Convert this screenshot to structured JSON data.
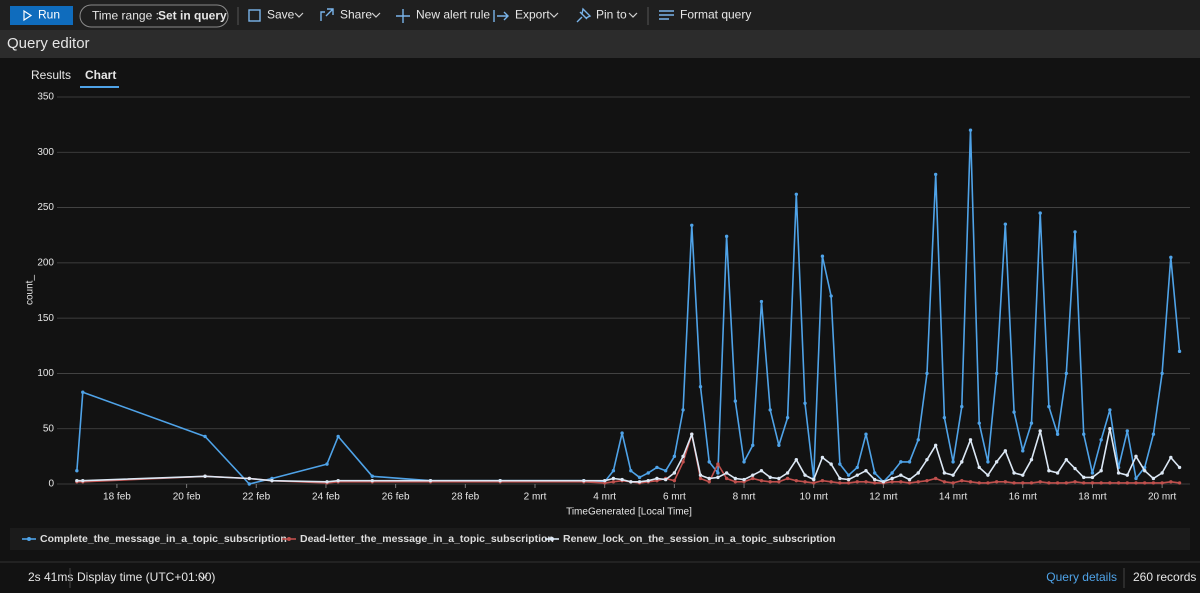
{
  "toolbar": {
    "run": "Run",
    "time_range_label": "Time range : ",
    "time_range_value": "Set in query",
    "save": "Save",
    "share": "Share",
    "new_alert_rule": "New alert rule",
    "export": "Export",
    "pin_to": "Pin to",
    "format_query": "Format query"
  },
  "header": {
    "title": "Query editor"
  },
  "tabs": [
    "Results",
    "Chart"
  ],
  "footer": {
    "duration": "2s 41ms",
    "display_time": "Display time (UTC+01:00)",
    "query_details": "Query details",
    "records": "260 records"
  },
  "chart_data": {
    "type": "line",
    "xlabel": "TimeGenerated [Local Time]",
    "ylabel": "count_",
    "x": [
      16.85,
      17.02,
      20.53,
      21.8,
      22.45,
      24.03,
      24.35,
      25.33,
      27,
      29,
      31.4,
      32,
      32.25,
      32.5,
      32.75,
      33,
      33.25,
      33.5,
      33.75,
      34,
      34.25,
      34.5,
      34.75,
      35,
      35.25,
      35.5,
      35.75,
      36,
      36.25,
      36.5,
      36.75,
      37,
      37.25,
      37.5,
      37.75,
      38,
      38.25,
      38.5,
      38.75,
      39,
      39.25,
      39.5,
      39.75,
      40,
      40.25,
      40.5,
      40.75,
      41,
      41.25,
      41.5,
      41.75,
      42,
      42.25,
      42.5,
      42.75,
      43,
      43.25,
      43.5,
      43.75,
      44,
      44.25,
      44.5,
      44.75,
      45,
      45.25,
      45.5,
      45.75,
      46,
      46.25,
      46.5,
      46.75,
      47,
      47.25,
      47.5,
      47.75,
      48,
      48.25,
      48.5
    ],
    "series": [
      {
        "name": "Complete_the_message_in_a_topic_subscription",
        "color": "#4fa3e8",
        "values": [
          12,
          83,
          43,
          0,
          5,
          18,
          43,
          7,
          3,
          3,
          3,
          2,
          12,
          46,
          12,
          6,
          10,
          15,
          12,
          25,
          67,
          234,
          88,
          20,
          10,
          224,
          75,
          20,
          35,
          165,
          67,
          35,
          60,
          262,
          73,
          5,
          206,
          170,
          18,
          8,
          15,
          45,
          10,
          2,
          10,
          20,
          20,
          40,
          100,
          280,
          60,
          20,
          70,
          320,
          55,
          20,
          100,
          235,
          65,
          30,
          55,
          245,
          70,
          45,
          100,
          228,
          45,
          10,
          40,
          67,
          15,
          48,
          5,
          15,
          45,
          100,
          205,
          120
        ]
      },
      {
        "name": "Dead-letter_the_message_in_a_topic_subscription",
        "color": "#c0504d",
        "values": [
          2,
          2,
          7,
          5,
          3,
          1,
          2,
          2,
          2,
          2,
          2,
          1,
          2,
          3,
          2,
          1,
          2,
          3,
          5,
          3,
          20,
          45,
          5,
          2,
          18,
          5,
          2,
          2,
          5,
          3,
          2,
          2,
          5,
          3,
          2,
          1,
          3,
          2,
          1,
          1,
          2,
          2,
          1,
          1,
          2,
          2,
          1,
          2,
          3,
          5,
          2,
          1,
          3,
          2,
          1,
          1,
          2,
          2,
          1,
          1,
          1,
          2,
          1,
          1,
          1,
          2,
          1,
          1,
          1,
          1,
          1,
          1,
          1,
          1,
          1,
          1,
          2,
          1
        ]
      },
      {
        "name": "Renew_lock_on_the_session_in_a_topic_subscription",
        "color": "#dce8f5",
        "values": [
          3,
          3,
          7,
          5,
          3,
          2,
          3,
          3,
          3,
          3,
          3,
          3,
          5,
          4,
          2,
          2,
          3,
          5,
          4,
          10,
          25,
          45,
          8,
          5,
          6,
          10,
          5,
          4,
          8,
          12,
          6,
          5,
          10,
          22,
          8,
          4,
          24,
          18,
          5,
          4,
          8,
          12,
          4,
          2,
          5,
          8,
          4,
          10,
          22,
          35,
          10,
          8,
          20,
          40,
          15,
          8,
          20,
          30,
          10,
          8,
          22,
          48,
          12,
          10,
          22,
          14,
          6,
          6,
          12,
          50,
          10,
          8,
          25,
          12,
          5,
          10,
          24,
          15
        ]
      }
    ],
    "xlim": [
      16.28,
      48.8
    ],
    "xticks": [
      {
        "value": 18,
        "label": "18 feb"
      },
      {
        "value": 20,
        "label": "20 feb"
      },
      {
        "value": 22,
        "label": "22 feb"
      },
      {
        "value": 24,
        "label": "24 feb"
      },
      {
        "value": 26,
        "label": "26 feb"
      },
      {
        "value": 28,
        "label": "28 feb"
      },
      {
        "value": 30,
        "label": "2 mrt"
      },
      {
        "value": 32,
        "label": "4 mrt"
      },
      {
        "value": 34,
        "label": "6 mrt"
      },
      {
        "value": 36,
        "label": "8 mrt"
      },
      {
        "value": 38,
        "label": "10 mrt"
      },
      {
        "value": 40,
        "label": "12 mrt"
      },
      {
        "value": 42,
        "label": "14 mrt"
      },
      {
        "value": 44,
        "label": "16 mrt"
      },
      {
        "value": 46,
        "label": "18 mrt"
      },
      {
        "value": 48,
        "label": "20 mrt"
      }
    ],
    "ylim": [
      0,
      350
    ],
    "yticks": [
      0,
      50,
      100,
      150,
      200,
      250,
      300,
      350
    ],
    "grid": true,
    "legend": "bottom"
  }
}
